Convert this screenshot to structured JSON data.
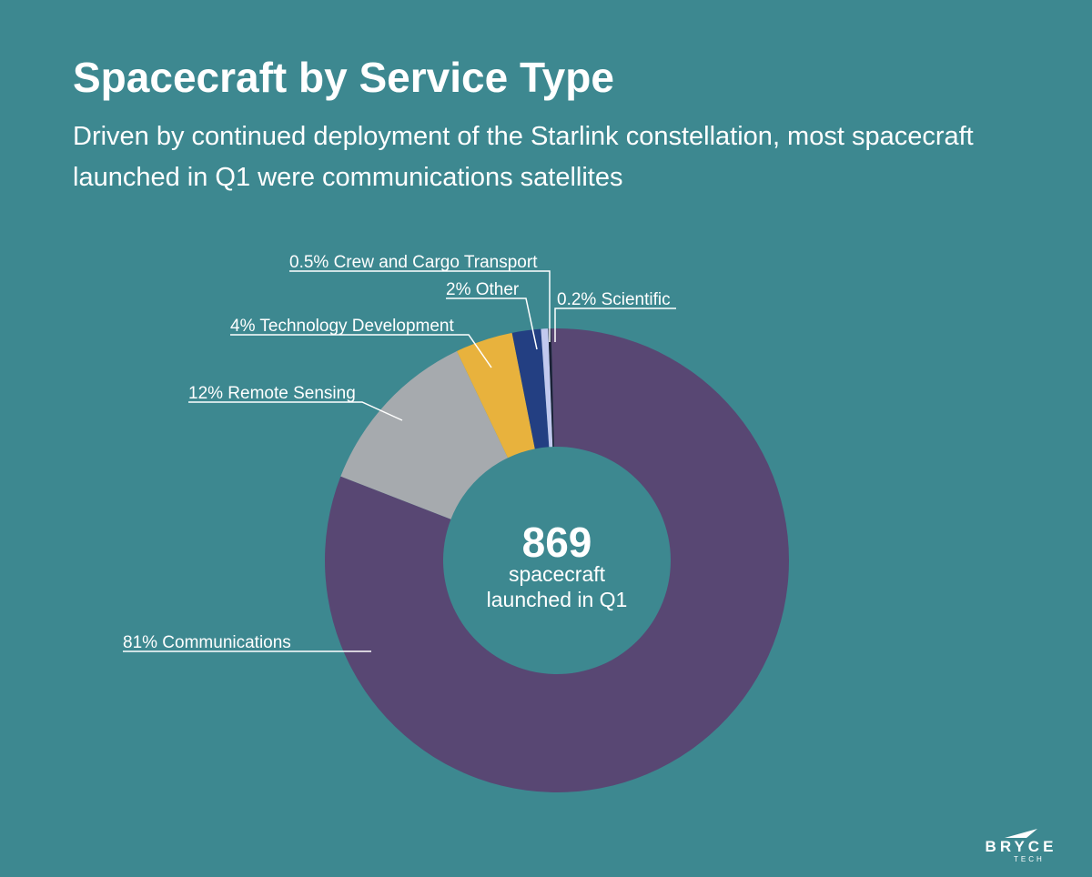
{
  "header": {
    "title": "Spacecraft by Service Type",
    "subtitle": "Driven by continued deployment of the Starlink constellation, most spacecraft launched in Q1 were communications satellites"
  },
  "chart_data": {
    "type": "pie",
    "variant": "donut",
    "center": {
      "value": "869",
      "line1": "spacecraft",
      "line2": "launched in Q1"
    },
    "slices": [
      {
        "name": "Communications",
        "label": "81% Communications",
        "value": 81.3,
        "color": "#584773"
      },
      {
        "name": "Remote Sensing",
        "label": "12% Remote Sensing",
        "value": 12.0,
        "color": "#A6AAAE"
      },
      {
        "name": "Technology Development",
        "label": "4% Technology Development",
        "value": 4.0,
        "color": "#E8B23D"
      },
      {
        "name": "Other",
        "label": "2% Other",
        "value": 2.0,
        "color": "#233F82"
      },
      {
        "name": "Crew and Cargo Transport",
        "label": "0.5% Crew and Cargo Transport",
        "value": 0.5,
        "color": "#C2C9EE"
      },
      {
        "name": "Scientific",
        "label": "0.2% Scientific",
        "value": 0.2,
        "color": "#1B2136"
      }
    ]
  },
  "logo": {
    "name": "BRYCE",
    "sub": "TECH"
  },
  "colors": {
    "background": "#3D8890",
    "text": "#FFFFFF"
  }
}
